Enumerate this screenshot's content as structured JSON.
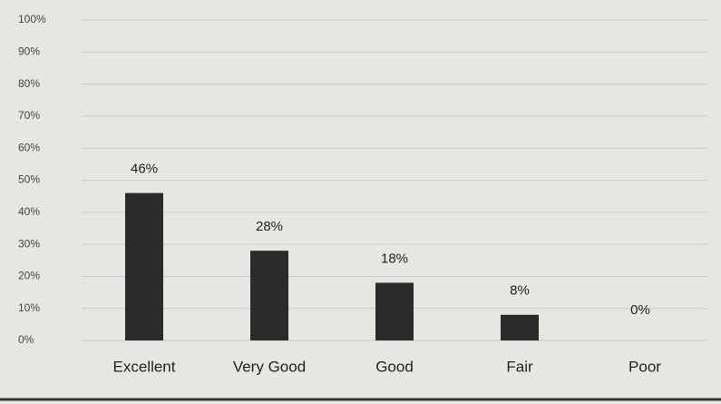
{
  "chart_data": {
    "type": "bar",
    "categories": [
      "Excellent",
      "Very Good",
      "Good",
      "Fair",
      "Poor"
    ],
    "values": [
      46,
      28,
      18,
      8,
      0
    ],
    "value_labels": [
      "46%",
      "28%",
      "18%",
      "8%",
      "0%"
    ],
    "color": "#2b2b2b",
    "ylim": [
      0,
      100
    ],
    "yticks": [
      {
        "value": 0,
        "label": "0%"
      },
      {
        "value": 10,
        "label": "10%"
      },
      {
        "value": 20,
        "label": "20%"
      },
      {
        "value": 30,
        "label": "30%"
      },
      {
        "value": 40,
        "label": "40%"
      },
      {
        "value": 50,
        "label": "50%"
      },
      {
        "value": 60,
        "label": "60%"
      },
      {
        "value": 70,
        "label": "70%"
      },
      {
        "value": 80,
        "label": "80%"
      },
      {
        "value": 90,
        "label": "90%"
      },
      {
        "value": 100,
        "label": "100%"
      }
    ],
    "grid": true
  }
}
